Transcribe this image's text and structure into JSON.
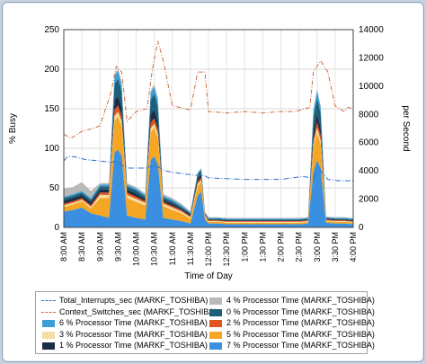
{
  "chart_data": {
    "type": "area",
    "xlabel": "Time of Day",
    "ylabel": "% Busy",
    "y2label": "per Second",
    "ylim": [
      0,
      250
    ],
    "y2lim": [
      0,
      14000
    ],
    "yticks": [
      "0",
      "50",
      "100",
      "150",
      "200",
      "250"
    ],
    "y2ticks": [
      "0",
      "2000",
      "4000",
      "6000",
      "8000",
      "10000",
      "12000",
      "14000"
    ],
    "xticks": [
      "8:00 AM",
      "8:30 AM",
      "9:00 AM",
      "9:30 AM",
      "10:00 AM",
      "10:30 AM",
      "11:00 AM",
      "11:30 AM",
      "12:00 PM",
      "12:30 PM",
      "1:00 PM",
      "1:30 PM",
      "2:00 PM",
      "2:30 PM",
      "3:00 PM",
      "3:30 PM",
      "4:00 PM"
    ],
    "x_hours": [
      8.0,
      8.25,
      8.5,
      8.75,
      9.0,
      9.25,
      9.4,
      9.5,
      9.6,
      9.75,
      10.0,
      10.25,
      10.4,
      10.5,
      10.6,
      10.75,
      11.0,
      11.25,
      11.5,
      11.7,
      11.8,
      11.9,
      12.0,
      12.25,
      12.5,
      12.75,
      13.0,
      13.25,
      13.5,
      13.75,
      14.0,
      14.25,
      14.5,
      14.75,
      14.9,
      15.0,
      15.1,
      15.25,
      15.5,
      15.75,
      16.0
    ],
    "stacked_series": [
      {
        "name": "7 % Processor Time (MARKF_TOSHIBA)",
        "color": "#3b8fe0",
        "values": [
          20,
          22,
          25,
          18,
          15,
          12,
          95,
          98,
          90,
          15,
          12,
          10,
          85,
          90,
          80,
          12,
          10,
          8,
          5,
          40,
          45,
          10,
          5,
          5,
          4,
          4,
          4,
          4,
          4,
          4,
          4,
          4,
          4,
          5,
          70,
          85,
          75,
          6,
          5,
          5,
          4
        ]
      },
      {
        "name": "5 % Processor Time (MARKF_TOSHIBA)",
        "color": "#f5a623",
        "values": [
          6,
          7,
          8,
          6,
          22,
          25,
          40,
          42,
          38,
          22,
          20,
          18,
          35,
          36,
          34,
          15,
          12,
          10,
          6,
          12,
          12,
          4,
          2,
          2,
          2,
          2,
          2,
          2,
          2,
          2,
          2,
          2,
          2,
          2,
          30,
          35,
          30,
          2,
          2,
          2,
          2
        ]
      },
      {
        "name": "3 % Processor Time (MARKF_TOSHIBA)",
        "color": "#f3dfa2",
        "values": [
          2,
          2,
          2,
          2,
          4,
          4,
          6,
          6,
          6,
          4,
          4,
          3,
          5,
          5,
          5,
          3,
          3,
          2,
          2,
          3,
          3,
          1,
          1,
          1,
          1,
          1,
          1,
          1,
          1,
          1,
          1,
          1,
          1,
          1,
          5,
          6,
          5,
          1,
          1,
          1,
          1
        ]
      },
      {
        "name": "2 % Processor Time (MARKF_TOSHIBA)",
        "color": "#e2541b",
        "values": [
          2,
          2,
          2,
          2,
          3,
          3,
          8,
          8,
          7,
          3,
          3,
          2,
          7,
          7,
          6,
          2,
          2,
          2,
          1,
          3,
          3,
          1,
          1,
          1,
          1,
          1,
          1,
          1,
          1,
          1,
          1,
          1,
          1,
          1,
          6,
          7,
          6,
          1,
          1,
          1,
          1
        ]
      },
      {
        "name": "1 % Processor Time (MARKF_TOSHIBA)",
        "color": "#1c2e45",
        "values": [
          4,
          4,
          4,
          4,
          4,
          4,
          12,
          12,
          11,
          4,
          4,
          3,
          11,
          11,
          10,
          3,
          3,
          2,
          2,
          4,
          4,
          1,
          1,
          1,
          1,
          1,
          1,
          1,
          1,
          1,
          1,
          1,
          1,
          1,
          10,
          11,
          10,
          1,
          1,
          1,
          1
        ]
      },
      {
        "name": "0 % Processor Time (MARKF_TOSHIBA)",
        "color": "#1d5f78",
        "values": [
          3,
          3,
          3,
          3,
          4,
          4,
          20,
          22,
          20,
          4,
          4,
          3,
          18,
          20,
          18,
          3,
          3,
          2,
          2,
          5,
          5,
          1,
          1,
          1,
          1,
          1,
          1,
          1,
          1,
          1,
          1,
          1,
          1,
          1,
          18,
          20,
          18,
          1,
          1,
          1,
          1
        ]
      },
      {
        "name": "6 % Processor Time (MARKF_TOSHIBA)",
        "color": "#3a9fd6",
        "values": [
          2,
          2,
          2,
          2,
          2,
          2,
          10,
          10,
          9,
          2,
          2,
          2,
          9,
          9,
          8,
          2,
          2,
          2,
          1,
          2,
          2,
          1,
          1,
          1,
          1,
          1,
          1,
          1,
          1,
          1,
          1,
          1,
          1,
          1,
          8,
          9,
          8,
          1,
          1,
          1,
          1
        ]
      },
      {
        "name": "4 % Processor Time (MARKF_TOSHIBA)",
        "color": "#b9b9b9",
        "values": [
          10,
          9,
          11,
          9,
          2,
          2,
          3,
          3,
          3,
          2,
          2,
          2,
          3,
          3,
          3,
          2,
          2,
          2,
          1,
          1,
          1,
          1,
          1,
          1,
          1,
          1,
          1,
          1,
          1,
          1,
          1,
          1,
          1,
          1,
          2,
          2,
          2,
          1,
          1,
          1,
          1
        ]
      }
    ],
    "line_series": [
      {
        "name": "Total_Interrupts_sec (MARKF_TOSHIBA)",
        "color": "#2f6fc0",
        "dash": "6,2,1,2",
        "axis": "right",
        "x": [
          8.0,
          8.1,
          8.3,
          8.6,
          9.0,
          9.3,
          9.45,
          9.6,
          9.8,
          10.0,
          10.3,
          10.45,
          10.6,
          10.8,
          11.0,
          11.3,
          11.6,
          11.9,
          12.0,
          12.5,
          13.0,
          13.5,
          14.0,
          14.3,
          14.6,
          14.9,
          15.0,
          15.1,
          15.3,
          15.6,
          15.8,
          16.0
        ],
        "values": [
          4700,
          5000,
          5000,
          4800,
          4700,
          4600,
          4700,
          4400,
          4200,
          4200,
          4200,
          4400,
          4300,
          4000,
          3900,
          3800,
          3700,
          3650,
          3500,
          3450,
          3400,
          3400,
          3400,
          3500,
          3600,
          3500,
          3900,
          4000,
          3400,
          3300,
          3300,
          3300
        ]
      },
      {
        "name": "Context_Switches_sec (MARKF_TOSHIBA)",
        "color": "#cc6b42",
        "dash": "5,2,1,2",
        "axis": "right",
        "x": [
          8.0,
          8.2,
          8.5,
          8.8,
          9.0,
          9.3,
          9.45,
          9.6,
          9.75,
          10.0,
          10.3,
          10.45,
          10.6,
          10.75,
          11.0,
          11.2,
          11.5,
          11.7,
          11.9,
          12.0,
          12.5,
          13.0,
          13.5,
          14.0,
          14.4,
          14.8,
          14.9,
          15.1,
          15.3,
          15.5,
          15.75,
          15.85,
          16.0
        ],
        "values": [
          6600,
          6300,
          6800,
          7000,
          7200,
          9500,
          11400,
          11000,
          7500,
          8200,
          8400,
          11200,
          13200,
          11800,
          8600,
          8500,
          8300,
          11000,
          11000,
          8200,
          8100,
          8200,
          8100,
          8200,
          8200,
          8500,
          11000,
          11800,
          11000,
          8600,
          8200,
          8500,
          8400
        ]
      }
    ],
    "legend": [
      {
        "name": "Total_Interrupts_sec (MARKF_TOSHIBA)",
        "kind": "line",
        "color": "#2f6fc0"
      },
      {
        "name": "4 % Processor Time (MARKF_TOSHIBA)",
        "kind": "area",
        "color": "#b9b9b9"
      },
      {
        "name": "Context_Switches_sec (MARKF_TOSHIBA)",
        "kind": "line",
        "color": "#cc6b42"
      },
      {
        "name": "0 % Processor Time (MARKF_TOSHIBA)",
        "kind": "area",
        "color": "#1d5f78"
      },
      {
        "name": "6 % Processor Time (MARKF_TOSHIBA)",
        "kind": "area",
        "color": "#3a9fd6"
      },
      {
        "name": "2 % Processor Time (MARKF_TOSHIBA)",
        "kind": "area",
        "color": "#e2541b"
      },
      {
        "name": "3 % Processor Time (MARKF_TOSHIBA)",
        "kind": "area",
        "color": "#f3dfa2"
      },
      {
        "name": "5 % Processor Time (MARKF_TOSHIBA)",
        "kind": "area",
        "color": "#f5a623"
      },
      {
        "name": "1 % Processor Time (MARKF_TOSHIBA)",
        "kind": "area",
        "color": "#1c2e45"
      },
      {
        "name": "7 % Processor Time (MARKF_TOSHIBA)",
        "kind": "area",
        "color": "#3b8fe0"
      }
    ]
  }
}
